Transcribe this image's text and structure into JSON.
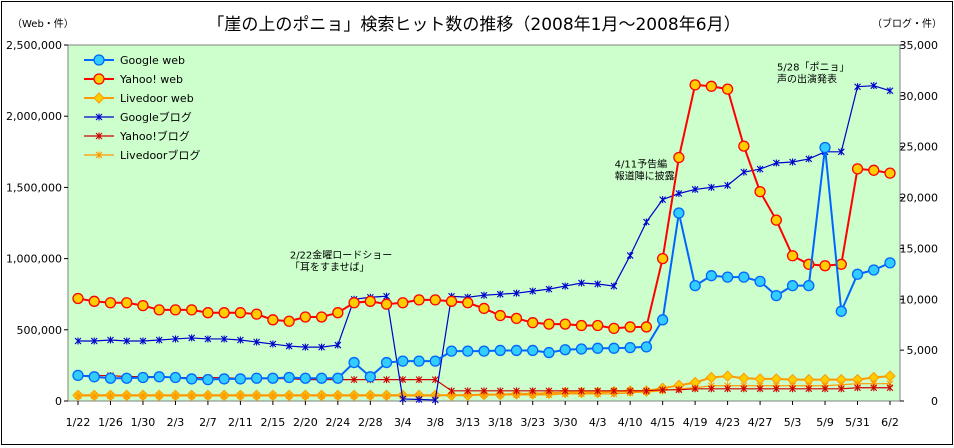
{
  "chart_data": {
    "type": "line",
    "title": "「崖の上のポニョ」検索ヒット数の推移（2008年1月〜2008年6月）",
    "ylabel": "（Web・件）",
    "y2label": "（ブログ・件）",
    "ylim": [
      0,
      2500000
    ],
    "y2lim": [
      0,
      35000
    ],
    "yticks": [
      "0",
      "500,000",
      "1,000,000",
      "1,500,000",
      "2,000,000",
      "2,500,000"
    ],
    "y2ticks": [
      "0",
      "5,000",
      "10,000",
      "15,000",
      "20,000",
      "25,000",
      "30,000",
      "35,000"
    ],
    "xticks": [
      {
        "i": 0,
        "label": "1/22"
      },
      {
        "i": 2,
        "label": "1/26"
      },
      {
        "i": 4,
        "label": "1/30"
      },
      {
        "i": 6,
        "label": "2/3"
      },
      {
        "i": 8,
        "label": "2/7"
      },
      {
        "i": 10,
        "label": "2/11"
      },
      {
        "i": 12,
        "label": "2/15"
      },
      {
        "i": 14,
        "label": "2/20"
      },
      {
        "i": 16,
        "label": "2/24"
      },
      {
        "i": 18,
        "label": "2/28"
      },
      {
        "i": 20,
        "label": "3/4"
      },
      {
        "i": 22,
        "label": "3/8"
      },
      {
        "i": 24,
        "label": "3/13"
      },
      {
        "i": 26,
        "label": "3/18"
      },
      {
        "i": 28,
        "label": "3/23"
      },
      {
        "i": 30,
        "label": "3/30"
      },
      {
        "i": 32,
        "label": "4/3"
      },
      {
        "i": 34,
        "label": "4/10"
      },
      {
        "i": 36,
        "label": "4/15"
      },
      {
        "i": 38,
        "label": "4/19"
      },
      {
        "i": 40,
        "label": "4/23"
      },
      {
        "i": 42,
        "label": "4/27"
      },
      {
        "i": 44,
        "label": "5/3"
      },
      {
        "i": 46,
        "label": "5/9"
      },
      {
        "i": 48,
        "label": "5/31"
      },
      {
        "i": 50,
        "label": "6/2"
      }
    ],
    "grid": false,
    "legend_position": "top-left",
    "plot_background": "#ccffcc",
    "series": [
      {
        "name": "Google web",
        "axis": "left",
        "color": "#0066ff",
        "fill": "#33ccff",
        "marker": "circle",
        "values": [
          180000,
          170000,
          160000,
          160000,
          165000,
          170000,
          165000,
          155000,
          150000,
          155000,
          155000,
          160000,
          160000,
          165000,
          160000,
          160000,
          160000,
          270000,
          170000,
          270000,
          280000,
          280000,
          280000,
          350000,
          350000,
          350000,
          355000,
          355000,
          355000,
          340000,
          360000,
          365000,
          370000,
          370000,
          375000,
          380000,
          570000,
          1320000,
          810000,
          880000,
          870000,
          870000,
          840000,
          740000,
          810000,
          810000,
          1780000,
          630000,
          890000,
          920000,
          970000
        ]
      },
      {
        "name": "Yahoo! web",
        "axis": "left",
        "color": "#ff0000",
        "fill": "#ffcc00",
        "marker": "circle",
        "values": [
          720000,
          700000,
          690000,
          690000,
          670000,
          640000,
          640000,
          640000,
          620000,
          620000,
          620000,
          610000,
          570000,
          560000,
          590000,
          590000,
          620000,
          690000,
          700000,
          680000,
          690000,
          710000,
          710000,
          700000,
          690000,
          650000,
          600000,
          580000,
          550000,
          540000,
          540000,
          530000,
          530000,
          510000,
          520000,
          520000,
          1000000,
          1710000,
          2220000,
          2210000,
          2190000,
          1790000,
          1470000,
          1270000,
          1020000,
          960000,
          950000,
          960000,
          1630000,
          1620000,
          1600000
        ]
      },
      {
        "name": "Livedoor web",
        "axis": "left",
        "color": "#ff9900",
        "fill": "#ffcc00",
        "marker": "diamond",
        "values": [
          40000,
          40000,
          40000,
          40000,
          40000,
          40000,
          40000,
          40000,
          40000,
          40000,
          40000,
          40000,
          40000,
          40000,
          40000,
          40000,
          40000,
          40000,
          40000,
          40000,
          40000,
          40000,
          40000,
          40000,
          40000,
          45000,
          45000,
          50000,
          50000,
          55000,
          60000,
          60000,
          60000,
          65000,
          70000,
          70000,
          90000,
          110000,
          130000,
          165000,
          175000,
          160000,
          155000,
          155000,
          150000,
          150000,
          150000,
          150000,
          150000,
          165000,
          175000
        ]
      },
      {
        "name": "Googleブログ",
        "axis": "right",
        "color": "#0000cc",
        "fill": "#0000cc",
        "marker": "star",
        "values": [
          5900,
          5900,
          6000,
          5900,
          5900,
          6000,
          6100,
          6200,
          6100,
          6100,
          6000,
          5800,
          5600,
          5400,
          5300,
          5300,
          5500,
          10000,
          10200,
          10300,
          200,
          150,
          100,
          10300,
          10200,
          10400,
          10500,
          10600,
          10800,
          11000,
          11300,
          11600,
          11500,
          11300,
          14300,
          17600,
          19800,
          20400,
          20800,
          21000,
          21200,
          22500,
          22800,
          23400,
          23500,
          23800,
          24500,
          24500,
          30900,
          31000,
          30500
        ]
      },
      {
        "name": "Yahoo!ブログ",
        "axis": "right",
        "color": "#cc0000",
        "fill": "#cc0000",
        "marker": "star",
        "values": [
          2500,
          2500,
          2500,
          2400,
          2400,
          2400,
          2300,
          2300,
          2300,
          2300,
          2200,
          2200,
          2200,
          2200,
          2100,
          2100,
          2100,
          2100,
          2100,
          2100,
          2100,
          2100,
          2100,
          1000,
          1000,
          1000,
          1000,
          1000,
          1000,
          1000,
          1000,
          1000,
          1000,
          1000,
          1000,
          1000,
          1100,
          1100,
          1200,
          1200,
          1200,
          1200,
          1200,
          1200,
          1200,
          1200,
          1200,
          1200,
          1300,
          1300,
          1300
        ]
      },
      {
        "name": "Livedoorブログ",
        "axis": "right",
        "color": "#ff9900",
        "fill": "#ff9900",
        "marker": "star",
        "values": [
          500,
          500,
          500,
          500,
          500,
          500,
          500,
          500,
          500,
          500,
          500,
          500,
          500,
          500,
          500,
          500,
          500,
          500,
          500,
          500,
          500,
          500,
          500,
          600,
          600,
          600,
          600,
          600,
          600,
          600,
          700,
          700,
          700,
          700,
          800,
          900,
          1000,
          1200,
          1300,
          1500,
          1500,
          1500,
          1500,
          1500,
          1500,
          1500,
          1500,
          1600,
          1700,
          1700,
          1700
        ]
      }
    ],
    "annotations": [
      {
        "lines": [
          "2/22金曜ロードショー",
          "「耳をすませば」"
        ],
        "i": 16,
        "axis": "left",
        "y": 1000000
      },
      {
        "lines": [
          "4/11予告編",
          "報道陣に披露"
        ],
        "i": 36,
        "axis": "left",
        "y": 1640000
      },
      {
        "lines": [
          "5/28「ポニョ」",
          "声の出演発表"
        ],
        "i": 46,
        "axis": "left",
        "y": 2320000
      }
    ]
  }
}
